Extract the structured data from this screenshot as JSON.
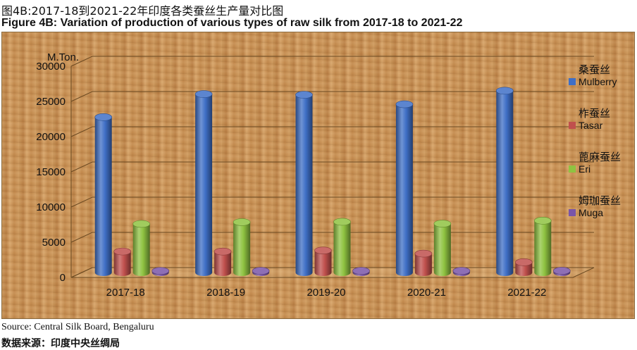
{
  "title_cn": "图4B:2017-18到2021-22年印度各类蚕丝生产量对比图",
  "title_en": "Figure 4B: Variation of production of various types of raw silk from 2017-18 to 2021-22",
  "source_en": "Source: Central Silk Board, Bengaluru",
  "source_cn": "数据来源：印度中央丝绸局",
  "chart_data": {
    "type": "bar",
    "title": "Figure 4B: Variation of production of various types of raw silk from 2017-18 to 2021-22",
    "xlabel": "",
    "ylabel": "M.Ton.",
    "ylim": [
      0,
      30000
    ],
    "yticks": [
      0,
      5000,
      10000,
      15000,
      20000,
      25000,
      30000
    ],
    "grid": true,
    "legend": "right",
    "categories": [
      "2017-18",
      "2018-19",
      "2019-20",
      "2020-21",
      "2021-22"
    ],
    "series": [
      {
        "name": "Mulberry",
        "name_cn": "桑蚕丝",
        "color": "#3f6fc6",
        "values": [
          22066,
          25344,
          25239,
          23896,
          25818
        ]
      },
      {
        "name": "Tasar",
        "name_cn": "柞蚕丝",
        "color": "#c0504d",
        "values": [
          2988,
          2981,
          3136,
          2689,
          1466
        ]
      },
      {
        "name": "Eri",
        "name_cn": "蓖麻蚕丝",
        "color": "#8fc341",
        "values": [
          6910,
          7160,
          7204,
          6946,
          7364
        ]
      },
      {
        "name": "Muga",
        "name_cn": "姆珈蚕丝",
        "color": "#7a55a8",
        "values": [
          233,
          241,
          241,
          239,
          255
        ]
      }
    ]
  }
}
